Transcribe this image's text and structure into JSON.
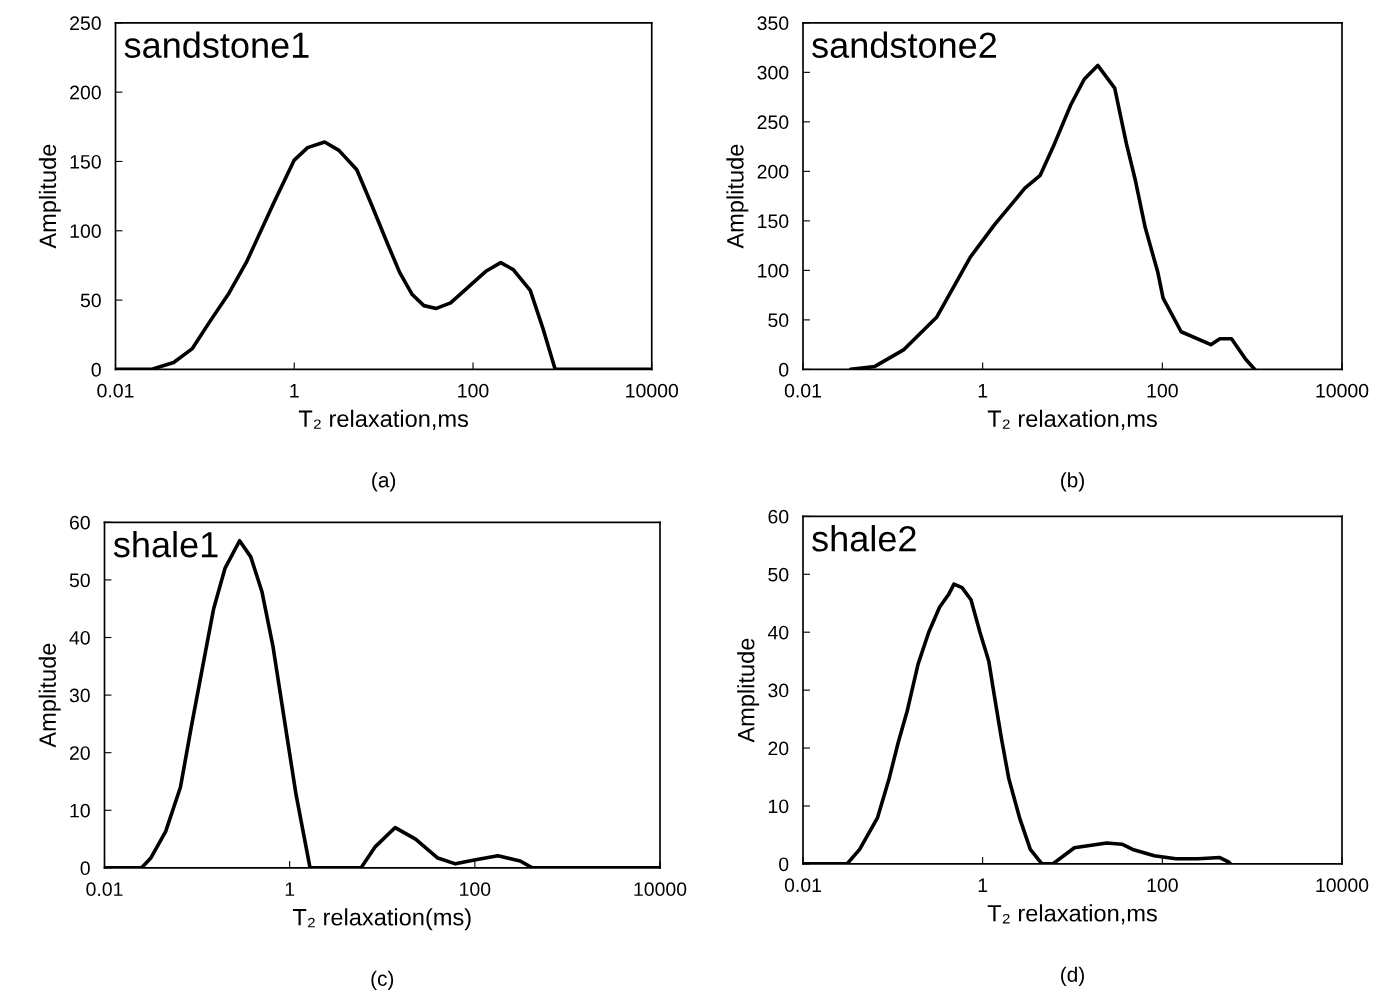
{
  "chart_data": [
    {
      "type": "line",
      "title": "sandstone1",
      "xlabel": "T₂ relaxation,ms",
      "ylabel": "Amplitude",
      "annotations": [
        "(a)"
      ],
      "log": "x",
      "xlim": [
        0.01,
        10000
      ],
      "xticks": [
        0.01,
        1,
        100,
        10000
      ],
      "ylim": [
        0,
        250
      ],
      "yticks": [
        0,
        50,
        100,
        150,
        200,
        250
      ],
      "series": [
        {
          "color": "#000000",
          "x": [
            0.01,
            0.0251,
            0.0447,
            0.0724,
            0.115,
            0.186,
            0.295,
            0.589,
            1,
            1.41,
            2.19,
            3.16,
            5.01,
            7.41,
            11.0,
            15.1,
            20.9,
            28.2,
            38.9,
            56.2,
            87.1,
            141,
            204,
            282,
            437,
            603,
            832,
            10000
          ],
          "values": [
            0,
            0,
            5,
            15,
            35,
            55,
            78,
            120,
            151,
            160,
            164,
            158,
            144,
            118,
            91,
            70,
            54,
            46,
            44,
            48,
            59,
            71,
            77,
            72,
            57,
            30,
            0,
            0
          ]
        }
      ]
    },
    {
      "type": "line",
      "title": "sandstone2",
      "xlabel": "T₂ relaxation,ms",
      "ylabel": "Amplitude",
      "annotations": [
        "(b)"
      ],
      "log": "x",
      "xlim": [
        0.01,
        10000
      ],
      "xticks": [
        0.01,
        1,
        100,
        10000
      ],
      "ylim": [
        0,
        350
      ],
      "yticks": [
        0,
        50,
        100,
        150,
        200,
        250,
        300,
        350
      ],
      "series": [
        {
          "color": "#000000",
          "x": [
            0.0339,
            0.0631,
            0.133,
            0.309,
            0.724,
            1.35,
            2.95,
            4.37,
            6.31,
            9.55,
            13.5,
            19.1,
            29.5,
            39.8,
            50.1,
            64.6,
            89.1,
            102,
            162,
            347,
            437,
            589,
            851,
            1070
          ],
          "values": [
            0,
            3,
            20,
            53,
            113,
            146,
            183,
            196,
            228,
            267,
            293,
            307,
            284,
            228,
            191,
            143,
            98,
            72,
            38,
            25,
            31,
            31,
            10,
            0
          ]
        }
      ]
    },
    {
      "type": "line",
      "title": "shale1",
      "xlabel": "T₂ relaxation(ms)",
      "ylabel": "Amplitude",
      "annotations": [
        "(c)"
      ],
      "log": "x",
      "xlim": [
        0.01,
        10000
      ],
      "xticks": [
        0.01,
        1,
        100,
        10000
      ],
      "ylim": [
        0,
        60
      ],
      "yticks": [
        0,
        10,
        20,
        30,
        40,
        50,
        60
      ],
      "series": [
        {
          "color": "#000000",
          "x": [
            0.01,
            0.0251,
            0.0316,
            0.0457,
            0.0661,
            0.0871,
            0.115,
            0.151,
            0.2,
            0.288,
            0.38,
            0.501,
            0.661,
            0.871,
            1.17,
            1.66,
            5.89,
            8.32,
            13.8,
            22.9,
            39.8,
            61.7,
            102,
            178,
            309,
            417,
            10000
          ],
          "values": [
            0,
            0,
            1.7,
            6.3,
            14,
            24.7,
            35,
            45,
            52,
            56.8,
            54,
            48,
            38.4,
            26,
            12.8,
            0,
            0,
            3.6,
            7,
            5,
            1.7,
            0.7,
            1.4,
            2.1,
            1.2,
            0,
            0
          ]
        }
      ]
    },
    {
      "type": "line",
      "title": "shale2",
      "xlabel": "T₂ relaxation,ms",
      "ylabel": "Amplitude",
      "annotations": [
        "(d)"
      ],
      "log": "x",
      "xlim": [
        0.01,
        10000
      ],
      "xticks": [
        0.01,
        1,
        100,
        10000
      ],
      "ylim": [
        0,
        60
      ],
      "yticks": [
        0,
        10,
        20,
        30,
        40,
        50,
        60
      ],
      "series": [
        {
          "color": "#000000",
          "x": [
            0.01,
            0.0309,
            0.0427,
            0.0676,
            0.0912,
            0.115,
            0.145,
            0.191,
            0.251,
            0.331,
            0.417,
            0.479,
            0.589,
            0.741,
            0.933,
            1.17,
            1.35,
            1.62,
            1.95,
            2.57,
            3.39,
            4.57,
            6.03,
            10.5,
            24.0,
            35.5,
            46.8,
            81.3,
            141,
            251,
            437,
            550,
            575
          ],
          "values": [
            0,
            0,
            2.5,
            8,
            14.8,
            21,
            26.5,
            34.5,
            40,
            44.3,
            46.5,
            48.3,
            47.7,
            45.6,
            40,
            35,
            29,
            21.6,
            14.8,
            8,
            2.5,
            0,
            0,
            2.8,
            3.6,
            3.4,
            2.5,
            1.4,
            0.9,
            0.9,
            1.1,
            0.3,
            0
          ]
        }
      ]
    }
  ]
}
